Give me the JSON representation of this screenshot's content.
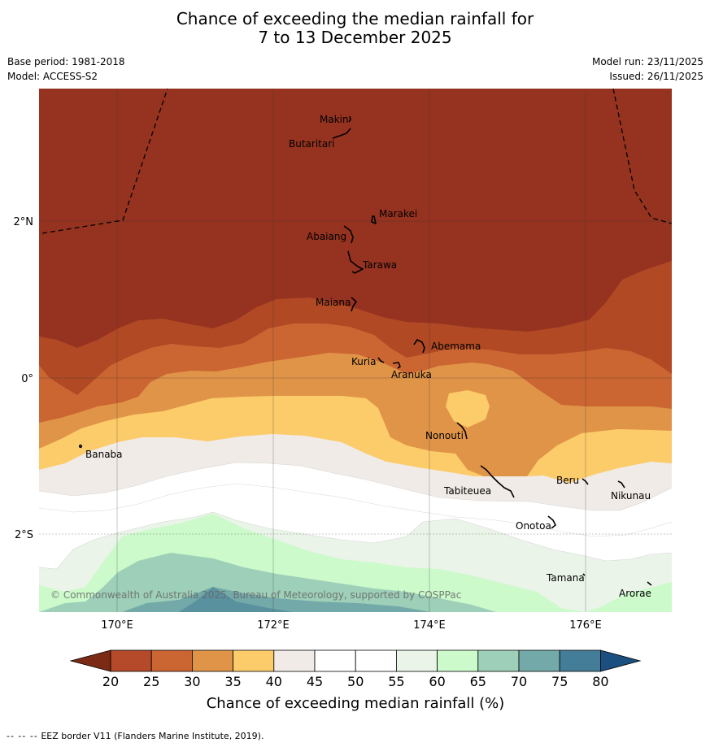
{
  "title": {
    "line1": "Chance of exceeding the median rainfall for",
    "line2": "7 to 13 December 2025"
  },
  "meta": {
    "base_period": "Base period: 1981-2018",
    "model": "Model: ACCESS-S2",
    "model_run": "Model run: 23/11/2025",
    "issued": "Issued: 26/11/2025"
  },
  "map": {
    "copyright": "© Commonwealth of Australia 2025, Bureau of Meteorology, supported by COSPPac",
    "lon_labels": [
      "170°E",
      "172°E",
      "174°E",
      "176°E"
    ],
    "lat_labels": [
      "2°N",
      "0°",
      "2°S"
    ],
    "places": [
      {
        "name": "Makin"
      },
      {
        "name": "Butaritari"
      },
      {
        "name": "Marakei"
      },
      {
        "name": "Abaiang"
      },
      {
        "name": "Tarawa"
      },
      {
        "name": "Maiana"
      },
      {
        "name": "Abemama"
      },
      {
        "name": "Kuria"
      },
      {
        "name": "Aranuka"
      },
      {
        "name": "Nonouti"
      },
      {
        "name": "Banaba"
      },
      {
        "name": "Beru"
      },
      {
        "name": "Tabiteuea"
      },
      {
        "name": "Nikunau"
      },
      {
        "name": "Onotoa"
      },
      {
        "name": "Tamana"
      },
      {
        "name": "Arorae"
      }
    ]
  },
  "legend": {
    "title": "Chance of exceeding median rainfall (%)",
    "ticks": [
      "20",
      "25",
      "30",
      "35",
      "40",
      "45",
      "50",
      "55",
      "60",
      "65",
      "70",
      "75",
      "80"
    ],
    "under_color": "#7a2a15",
    "over_color": "#1a4f80",
    "colors": [
      "#b44a29",
      "#cb6532",
      "#e09448",
      "#fccb6a",
      "#f0ebe6",
      "#ffffff",
      "#ffffff",
      "#eaf4e8",
      "#ccfacb",
      "#9ecfb8",
      "#73a9a8",
      "#437d98"
    ]
  },
  "footer": {
    "dash": "--  --  --",
    "text": "EEZ border V11 (Flanders Marine Institute, 2019)."
  }
}
